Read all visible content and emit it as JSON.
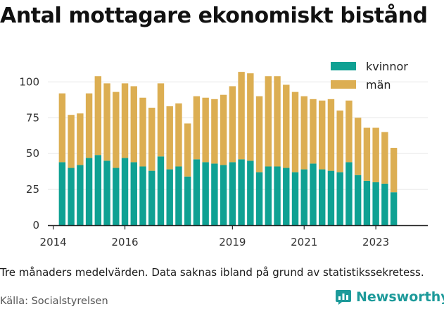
{
  "title": "Antal mottagare ekonomiskt bistånd",
  "note": "Tre månaders medelvärden. Data saknas ibland på grund av statistikssekretess.",
  "source": "Källa: Socialstyrelsen",
  "brand": {
    "name": "Newsworthy",
    "color": "#1d9a9a"
  },
  "colors": {
    "kvinnor": "#0fa193",
    "man": "#dcae52",
    "grid": "#e6e6e6",
    "axis": "#222222"
  },
  "chart_data": {
    "type": "bar",
    "stacked": true,
    "title": "Antal mottagare ekonomiskt bistånd",
    "xlabel": "",
    "ylabel": "",
    "ylim": [
      0,
      110
    ],
    "yticks": [
      0,
      25,
      50,
      75,
      100
    ],
    "xticks": [
      "2014",
      "2016",
      "2019",
      "2021",
      "2023"
    ],
    "xtick_positions": [
      2014.0,
      2016.0,
      2019.0,
      2021.0,
      2023.0
    ],
    "xlim": [
      2013.85,
      2024.45
    ],
    "grid": true,
    "legend_position": "top-right",
    "x": [
      2014.25,
      2014.5,
      2014.75,
      2015.0,
      2015.25,
      2015.5,
      2015.75,
      2016.0,
      2016.25,
      2016.5,
      2016.75,
      2017.0,
      2017.25,
      2017.5,
      2017.75,
      2018.0,
      2018.25,
      2018.5,
      2018.75,
      2019.0,
      2019.25,
      2019.5,
      2019.75,
      2020.0,
      2020.25,
      2020.5,
      2020.75,
      2021.0,
      2021.25,
      2021.5,
      2021.75,
      2022.0,
      2022.25,
      2022.5,
      2022.75,
      2023.0,
      2023.25,
      2023.5
    ],
    "series": [
      {
        "name": "kvinnor",
        "values": [
          44,
          40,
          42,
          47,
          49,
          45,
          40,
          47,
          44,
          41,
          38,
          48,
          39,
          41,
          34,
          46,
          44,
          43,
          42,
          44,
          46,
          45,
          37,
          41,
          41,
          40,
          37,
          39,
          43,
          39,
          38,
          37,
          44,
          35,
          31,
          30,
          29,
          23
        ]
      },
      {
        "name": "män",
        "values": [
          48,
          37,
          36,
          45,
          55,
          54,
          53,
          52,
          53,
          48,
          44,
          51,
          44,
          44,
          37,
          44,
          45,
          45,
          49,
          53,
          61,
          61,
          53,
          63,
          63,
          58,
          56,
          51,
          45,
          48,
          50,
          43,
          43,
          40,
          37,
          38,
          36,
          31
        ]
      }
    ]
  },
  "legend": [
    {
      "label": "kvinnor",
      "color": "#0fa193"
    },
    {
      "label": "män",
      "color": "#dcae52"
    }
  ]
}
